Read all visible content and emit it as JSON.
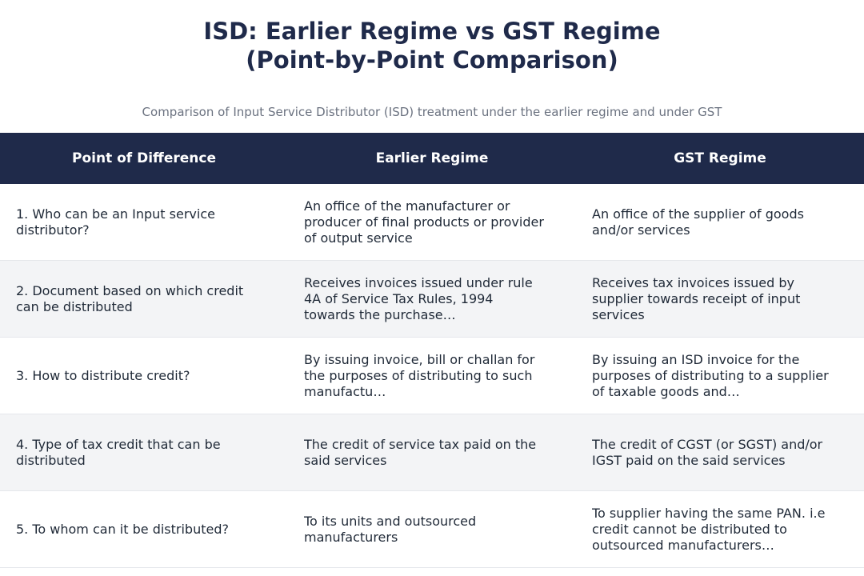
{
  "title": {
    "line1": "ISD: Earlier Regime vs GST Regime",
    "line2": "(Point-by-Point Comparison)"
  },
  "subtitle": "Comparison of Input Service Distributor (ISD) treatment under the earlier regime and under GST",
  "table": {
    "headers": [
      "Point of Difference",
      "Earlier Regime",
      "GST Regime"
    ],
    "rows": [
      {
        "point": "1. Who can be an Input service distributor?",
        "earlier": "An office of the manufacturer or producer of final products or provider of output service",
        "gst": "An office of the supplier of goods and/or services"
      },
      {
        "point": "2. Document based on which credit can be distributed",
        "earlier": "Receives invoices issued under rule 4A of Service Tax Rules, 1994 towards the purchase…",
        "gst": "Receives tax invoices issued by supplier towards receipt of input services"
      },
      {
        "point": "3. How to distribute credit?",
        "earlier": "By issuing invoice, bill or challan for the purposes of distributing to such manufactu…",
        "gst": "By issuing an ISD invoice for the purposes of distributing to a supplier of taxable goods and…"
      },
      {
        "point": "4. Type of tax credit that can be distributed",
        "earlier": "The credit of service tax paid on the said services",
        "gst": "The credit of CGST (or SGST) and/or IGST paid on the said services"
      },
      {
        "point": "5. To whom can it be distributed?",
        "earlier": "To its units and outsourced manufacturers",
        "gst": "To supplier having the same PAN. i.e credit cannot be distributed to outsourced manufacturers…"
      }
    ]
  },
  "colors": {
    "header_bg": "#1f2a4a",
    "title": "#1f2a4a",
    "alt_row_bg": "#f3f4f6",
    "subtitle": "#6b7280"
  }
}
